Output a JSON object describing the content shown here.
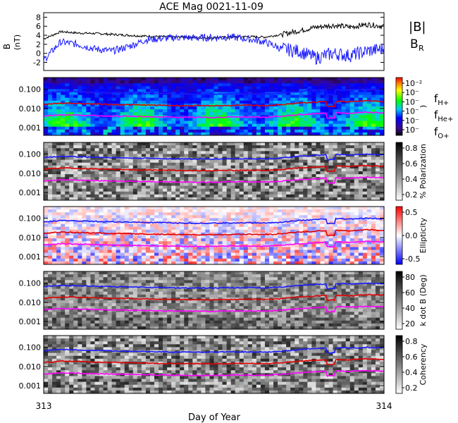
{
  "title": "ACE Mag 0021-11-09",
  "colors": {
    "h": "#1a1aff",
    "he": "#e00000",
    "o": "#ff00ff",
    "bmag": "#000000",
    "br": "#1a1aff"
  },
  "chart_data": [
    {
      "type": "line",
      "panel": "field",
      "ylabel": "B (nT)",
      "ylim": [
        -3.8,
        9
      ],
      "yticks": [
        "8",
        "6",
        "4",
        "2",
        "0",
        "-2"
      ],
      "legend": [
        "|B|",
        "B_R"
      ],
      "series": [
        {
          "name": "|B|",
          "color": "#000000",
          "x": [
            0,
            0.05,
            0.1,
            0.15,
            0.2,
            0.25,
            0.3,
            0.35,
            0.4,
            0.45,
            0.5,
            0.55,
            0.6,
            0.65,
            0.7,
            0.75,
            0.8,
            0.85,
            0.9,
            0.95,
            1.0
          ],
          "y": [
            3.2,
            4.8,
            4.5,
            4.4,
            4.2,
            4.0,
            3.8,
            3.7,
            3.6,
            3.5,
            3.5,
            3.6,
            3.7,
            3.6,
            4.2,
            5.0,
            5.8,
            6.2,
            5.8,
            6.4,
            6.0
          ]
        },
        {
          "name": "B_R",
          "color": "#1a1aff",
          "x": [
            0,
            0.05,
            0.1,
            0.15,
            0.2,
            0.25,
            0.3,
            0.35,
            0.4,
            0.45,
            0.5,
            0.55,
            0.6,
            0.65,
            0.7,
            0.75,
            0.8,
            0.85,
            0.9,
            0.95,
            1.0
          ],
          "y": [
            -1.5,
            2.5,
            2.0,
            1.0,
            0.5,
            1.5,
            3.0,
            3.3,
            3.5,
            3.4,
            3.5,
            3.6,
            3.2,
            2.5,
            1.0,
            0.5,
            -1.0,
            0.0,
            -0.5,
            0.5,
            1.0
          ]
        }
      ]
    },
    {
      "type": "heatmap",
      "panel": "power",
      "colorbar": {
        "ticks": [
          "10⁻²",
          "10⁻",
          "10⁻",
          "10⁻",
          "10⁻",
          "10⁻"
        ],
        "label": ")"
      }
    },
    {
      "type": "heatmap",
      "panel": "polarization",
      "colorbar": {
        "ticks": [
          "0.8",
          "0.6",
          "0.4",
          "0.2"
        ],
        "label": "% Polarization"
      }
    },
    {
      "type": "heatmap",
      "panel": "ellipticity",
      "colorbar": {
        "ticks": [
          "0.5",
          "0.0",
          "-0.5"
        ],
        "label": "Ellipticity"
      }
    },
    {
      "type": "heatmap",
      "panel": "kdotb",
      "colorbar": {
        "ticks": [
          "80",
          "60",
          "40",
          "20"
        ],
        "label": "k dot B (Deg)"
      }
    },
    {
      "type": "heatmap",
      "panel": "coherency",
      "colorbar": {
        "ticks": [
          "0.8",
          "0.6",
          "0.4",
          "0.2"
        ],
        "label": "Coherency"
      }
    }
  ],
  "freq_axis": {
    "ticks": [
      "0.100",
      "0.010",
      "0.001"
    ],
    "values": [
      0.1,
      0.01,
      0.001
    ],
    "ylim": [
      0.0004,
      0.4
    ]
  },
  "gyro_lines": {
    "x": [
      0,
      0.05,
      0.1,
      0.15,
      0.2,
      0.25,
      0.3,
      0.35,
      0.4,
      0.45,
      0.5,
      0.55,
      0.6,
      0.65,
      0.7,
      0.75,
      0.8,
      0.85,
      0.9,
      0.95,
      1.0
    ],
    "f_h": [
      0.065,
      0.075,
      0.072,
      0.068,
      0.065,
      0.062,
      0.06,
      0.058,
      0.056,
      0.055,
      0.055,
      0.057,
      0.058,
      0.056,
      0.062,
      0.075,
      0.085,
      0.095,
      0.09,
      0.098,
      0.092
    ],
    "f_he": [
      0.016,
      0.019,
      0.018,
      0.017,
      0.016,
      0.0155,
      0.015,
      0.0145,
      0.014,
      0.0138,
      0.0138,
      0.0142,
      0.0145,
      0.014,
      0.0155,
      0.019,
      0.021,
      0.024,
      0.022,
      0.025,
      0.023
    ],
    "f_o": [
      0.004,
      0.0047,
      0.0045,
      0.0042,
      0.004,
      0.0039,
      0.0037,
      0.0036,
      0.0035,
      0.0034,
      0.0034,
      0.0036,
      0.0036,
      0.0035,
      0.0039,
      0.0047,
      0.0053,
      0.006,
      0.0056,
      0.0062,
      0.0058
    ]
  },
  "ion_labels": {
    "h": "f_H+",
    "he": "f_He+",
    "o": "f_O+"
  },
  "xaxis": {
    "label": "Day of Year",
    "start_label": "313",
    "end_label": "314"
  }
}
